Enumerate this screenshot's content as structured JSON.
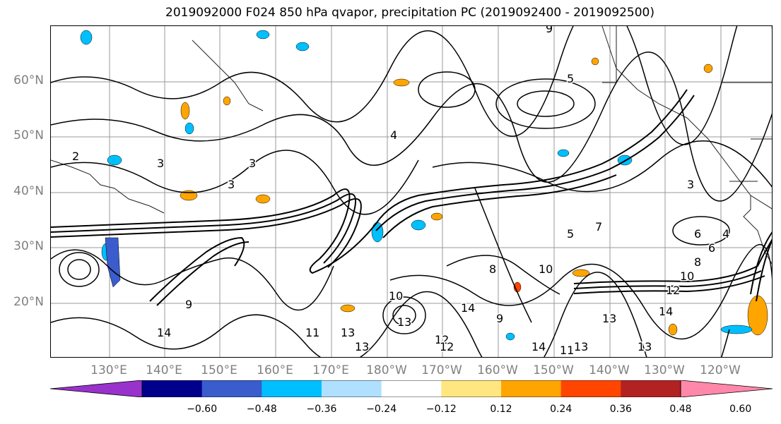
{
  "title": "2019092000 F024 850 hPa qvapor, precipitation PC (2019092400 - 2019092500)",
  "lat_labels": [
    "60°N",
    "50°N",
    "40°N",
    "30°N",
    "20°N"
  ],
  "lon_labels": [
    "130°E",
    "140°E",
    "150°E",
    "160°E",
    "170°E",
    "180°W",
    "170°W",
    "160°W",
    "150°W",
    "140°W",
    "130°W",
    "120°W"
  ],
  "colorbar": {
    "colors": [
      "#9932cc",
      "#00008b",
      "#3a5ccc",
      "#00bfff",
      "#b0e0ff",
      "#ffffff",
      "#ffe680",
      "#ffa500",
      "#ff4500",
      "#b22222",
      "#ff88aa"
    ],
    "ticks": [
      "−0.60",
      "−0.48",
      "−0.36",
      "−0.24",
      "−0.12",
      "0.12",
      "0.24",
      "0.36",
      "0.48",
      "0.60"
    ]
  },
  "contour_labels": [
    "5",
    "3",
    "4",
    "2",
    "3",
    "3",
    "8",
    "10",
    "12",
    "13",
    "14",
    "13",
    "11",
    "13",
    "10",
    "9",
    "14",
    "12",
    "6",
    "3",
    "5",
    "7",
    "9",
    "11",
    "13",
    "13",
    "13",
    "14",
    "12",
    "10",
    "8",
    "6",
    "4",
    "9",
    "14"
  ],
  "icons": {
    "jet-axis": "thick-contour-band",
    "shading": "precip-anomaly-patches"
  }
}
